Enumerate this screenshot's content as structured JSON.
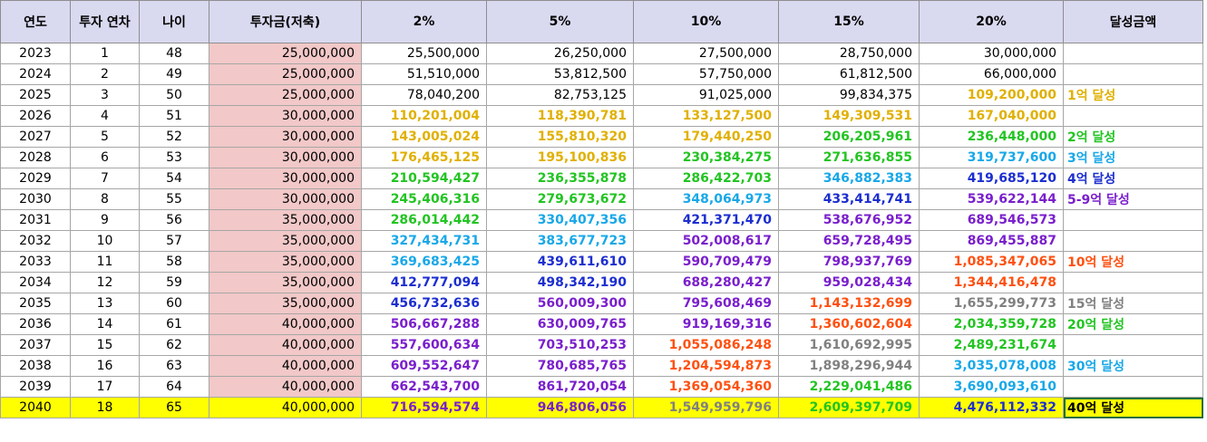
{
  "headers": [
    "연도",
    "투자 연차",
    "나이",
    "투자금(저축)",
    "2%",
    "5%",
    "10%",
    "15%",
    "20%",
    "달성금액"
  ],
  "colors": {
    "black": "#000000",
    "gold": "#e0b000",
    "green": "#22c422",
    "cyan": "#18a8e8",
    "blue": "#1c2ed0",
    "purple": "#7a1fcc",
    "orange": "#ff5010",
    "gray": "#808080",
    "header_bg": "#d9d9f0",
    "deposit_bg": "#f2c8c8",
    "highlight_bg": "#ffff00"
  },
  "rows": [
    {
      "year": "2023",
      "n": "1",
      "age": "48",
      "deposit": "25,000,000",
      "v": [
        "25,500,000",
        "26,250,000",
        "27,500,000",
        "28,750,000",
        "30,000,000"
      ],
      "c": [
        "black",
        "black",
        "black",
        "black",
        "black"
      ],
      "ach": "",
      "ach_c": "black"
    },
    {
      "year": "2024",
      "n": "2",
      "age": "49",
      "deposit": "25,000,000",
      "v": [
        "51,510,000",
        "53,812,500",
        "57,750,000",
        "61,812,500",
        "66,000,000"
      ],
      "c": [
        "black",
        "black",
        "black",
        "black",
        "black"
      ],
      "ach": "",
      "ach_c": "black"
    },
    {
      "year": "2025",
      "n": "3",
      "age": "50",
      "deposit": "25,000,000",
      "v": [
        "78,040,200",
        "82,753,125",
        "91,025,000",
        "99,834,375",
        "109,200,000"
      ],
      "c": [
        "black",
        "black",
        "black",
        "black",
        "gold"
      ],
      "ach": "1억 달성",
      "ach_c": "gold"
    },
    {
      "year": "2026",
      "n": "4",
      "age": "51",
      "deposit": "30,000,000",
      "v": [
        "110,201,004",
        "118,390,781",
        "133,127,500",
        "149,309,531",
        "167,040,000"
      ],
      "c": [
        "gold",
        "gold",
        "gold",
        "gold",
        "gold"
      ],
      "ach": "",
      "ach_c": "black"
    },
    {
      "year": "2027",
      "n": "5",
      "age": "52",
      "deposit": "30,000,000",
      "v": [
        "143,005,024",
        "155,810,320",
        "179,440,250",
        "206,205,961",
        "236,448,000"
      ],
      "c": [
        "gold",
        "gold",
        "gold",
        "green",
        "green"
      ],
      "ach": "2억 달성",
      "ach_c": "green"
    },
    {
      "year": "2028",
      "n": "6",
      "age": "53",
      "deposit": "30,000,000",
      "v": [
        "176,465,125",
        "195,100,836",
        "230,384,275",
        "271,636,855",
        "319,737,600"
      ],
      "c": [
        "gold",
        "gold",
        "green",
        "green",
        "cyan"
      ],
      "ach": "3억 달성",
      "ach_c": "cyan"
    },
    {
      "year": "2029",
      "n": "7",
      "age": "54",
      "deposit": "30,000,000",
      "v": [
        "210,594,427",
        "236,355,878",
        "286,422,703",
        "346,882,383",
        "419,685,120"
      ],
      "c": [
        "green",
        "green",
        "green",
        "cyan",
        "blue"
      ],
      "ach": "4억 달성",
      "ach_c": "blue"
    },
    {
      "year": "2030",
      "n": "8",
      "age": "55",
      "deposit": "30,000,000",
      "v": [
        "245,406,316",
        "279,673,672",
        "348,064,973",
        "433,414,741",
        "539,622,144"
      ],
      "c": [
        "green",
        "green",
        "cyan",
        "blue",
        "purple"
      ],
      "ach": "5-9억 달성",
      "ach_c": "purple"
    },
    {
      "year": "2031",
      "n": "9",
      "age": "56",
      "deposit": "35,000,000",
      "v": [
        "286,014,442",
        "330,407,356",
        "421,371,470",
        "538,676,952",
        "689,546,573"
      ],
      "c": [
        "green",
        "cyan",
        "blue",
        "purple",
        "purple"
      ],
      "ach": "",
      "ach_c": "black"
    },
    {
      "year": "2032",
      "n": "10",
      "age": "57",
      "deposit": "35,000,000",
      "v": [
        "327,434,731",
        "383,677,723",
        "502,008,617",
        "659,728,495",
        "869,455,887"
      ],
      "c": [
        "cyan",
        "cyan",
        "purple",
        "purple",
        "purple"
      ],
      "ach": "",
      "ach_c": "black"
    },
    {
      "year": "2033",
      "n": "11",
      "age": "58",
      "deposit": "35,000,000",
      "v": [
        "369,683,425",
        "439,611,610",
        "590,709,479",
        "798,937,769",
        "1,085,347,065"
      ],
      "c": [
        "cyan",
        "blue",
        "purple",
        "purple",
        "orange"
      ],
      "ach": "10억 달성",
      "ach_c": "orange"
    },
    {
      "year": "2034",
      "n": "12",
      "age": "59",
      "deposit": "35,000,000",
      "v": [
        "412,777,094",
        "498,342,190",
        "688,280,427",
        "959,028,434",
        "1,344,416,478"
      ],
      "c": [
        "blue",
        "blue",
        "purple",
        "purple",
        "orange"
      ],
      "ach": "",
      "ach_c": "black"
    },
    {
      "year": "2035",
      "n": "13",
      "age": "60",
      "deposit": "35,000,000",
      "v": [
        "456,732,636",
        "560,009,300",
        "795,608,469",
        "1,143,132,699",
        "1,655,299,773"
      ],
      "c": [
        "blue",
        "purple",
        "purple",
        "orange",
        "gray"
      ],
      "ach": "15억 달성",
      "ach_c": "gray"
    },
    {
      "year": "2036",
      "n": "14",
      "age": "61",
      "deposit": "40,000,000",
      "v": [
        "506,667,288",
        "630,009,765",
        "919,169,316",
        "1,360,602,604",
        "2,034,359,728"
      ],
      "c": [
        "purple",
        "purple",
        "purple",
        "orange",
        "green"
      ],
      "ach": "20억 달성",
      "ach_c": "green"
    },
    {
      "year": "2037",
      "n": "15",
      "age": "62",
      "deposit": "40,000,000",
      "v": [
        "557,600,634",
        "703,510,253",
        "1,055,086,248",
        "1,610,692,995",
        "2,489,231,674"
      ],
      "c": [
        "purple",
        "purple",
        "orange",
        "gray",
        "green"
      ],
      "ach": "",
      "ach_c": "black"
    },
    {
      "year": "2038",
      "n": "16",
      "age": "63",
      "deposit": "40,000,000",
      "v": [
        "609,552,647",
        "780,685,765",
        "1,204,594,873",
        "1,898,296,944",
        "3,035,078,008"
      ],
      "c": [
        "purple",
        "purple",
        "orange",
        "gray",
        "cyan"
      ],
      "ach": "30억 달성",
      "ach_c": "cyan"
    },
    {
      "year": "2039",
      "n": "17",
      "age": "64",
      "deposit": "40,000,000",
      "v": [
        "662,543,700",
        "861,720,054",
        "1,369,054,360",
        "2,229,041,486",
        "3,690,093,610"
      ],
      "c": [
        "purple",
        "purple",
        "orange",
        "green",
        "cyan"
      ],
      "ach": "",
      "ach_c": "black"
    },
    {
      "year": "2040",
      "n": "18",
      "age": "65",
      "deposit": "40,000,000",
      "v": [
        "716,594,574",
        "946,806,056",
        "1,549,959,796",
        "2,609,397,709",
        "4,476,112,332"
      ],
      "c": [
        "purple",
        "purple",
        "gray",
        "green",
        "blue"
      ],
      "ach": "40억 달성",
      "ach_c": "black",
      "highlight": true
    }
  ]
}
